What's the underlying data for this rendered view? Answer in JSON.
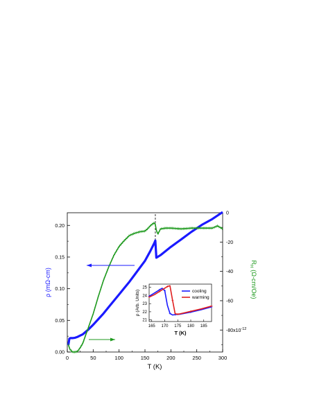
{
  "chart_data": [
    {
      "type": "line",
      "xlabel": "T (K)",
      "ylabel_left": "ρ (mΩ-cm)",
      "ylabel_right_prefix": "R",
      "ylabel_right_sub": "H",
      "ylabel_right_suffix": " (Ω-cm/Oe)",
      "xlim": [
        0,
        300
      ],
      "ylim_left": [
        0,
        0.22
      ],
      "ylim_right": [
        -95,
        0
      ],
      "x_ticks": [
        "0",
        "50",
        "100",
        "150",
        "200",
        "250",
        "300"
      ],
      "y_ticks_left": [
        "0.00",
        "0.05",
        "0.10",
        "0.15",
        "0.20"
      ],
      "y_ticks_right": [
        "0",
        "-20",
        "-40",
        "-60",
        "-80x10"
      ],
      "y_right_exponent": "-12",
      "dashed_line_x": 170,
      "series": [
        {
          "axis": "left",
          "color": "#1a1aff",
          "x": [
            2,
            4,
            6,
            10,
            15,
            20,
            25,
            30,
            40,
            50,
            60,
            70,
            80,
            90,
            100,
            110,
            120,
            130,
            140,
            150,
            160,
            168,
            170,
            172,
            180,
            200,
            220,
            240,
            260,
            280,
            300
          ],
          "y": [
            0.011,
            0.021,
            0.022,
            0.022,
            0.0225,
            0.024,
            0.026,
            0.028,
            0.035,
            0.043,
            0.052,
            0.061,
            0.071,
            0.081,
            0.091,
            0.101,
            0.111,
            0.122,
            0.133,
            0.144,
            0.159,
            0.172,
            0.176,
            0.149,
            0.153,
            0.166,
            0.178,
            0.19,
            0.201,
            0.21,
            0.221
          ]
        },
        {
          "axis": "right",
          "color": "#1f9a1f",
          "x": [
            2,
            5,
            10,
            15,
            20,
            25,
            30,
            35,
            40,
            50,
            60,
            70,
            80,
            90,
            100,
            110,
            120,
            130,
            140,
            150,
            155,
            160,
            165,
            168,
            170,
            172,
            175,
            180,
            190,
            200,
            220,
            240,
            260,
            280,
            290,
            295,
            300
          ],
          "y": [
            -90,
            -93,
            -95,
            -95,
            -94.5,
            -92,
            -89,
            -84,
            -79,
            -69,
            -57,
            -46,
            -37,
            -29,
            -23,
            -19,
            -15.5,
            -14,
            -13,
            -12.5,
            -11,
            -9,
            -7.5,
            -7,
            -8,
            -12,
            -14.5,
            -11,
            -10.5,
            -10.5,
            -11,
            -10.5,
            -10.5,
            -10.5,
            -9,
            -10,
            -11
          ]
        }
      ],
      "annotations": [
        {
          "type": "arrow",
          "direction": "left",
          "color": "#1a1aff",
          "points_to": "left axis"
        },
        {
          "type": "arrow",
          "direction": "right",
          "color": "#1f9a1f",
          "points_to": "right axis"
        }
      ]
    },
    {
      "type": "line",
      "inset": true,
      "xlabel": "T (K)",
      "ylabel": "ρ (Arb. Units)",
      "xlim": [
        164,
        188
      ],
      "ylim": [
        20.8,
        25.4
      ],
      "x_ticks": [
        "165",
        "170",
        "175",
        "180",
        "185"
      ],
      "y_ticks": [
        "21",
        "22",
        "23",
        "24",
        "25"
      ],
      "legend_position": "top-right",
      "series": [
        {
          "name": "cooling",
          "color": "#1a1aff",
          "x": [
            164,
            166,
            168,
            169,
            170,
            171,
            172,
            173,
            174,
            176,
            180,
            184,
            188
          ],
          "y": [
            23.9,
            24.3,
            24.7,
            24.9,
            24.6,
            22.8,
            21.8,
            21.6,
            21.65,
            21.7,
            21.95,
            22.25,
            22.6
          ]
        },
        {
          "name": "warming",
          "color": "#e01f1f",
          "x": [
            164,
            166,
            168,
            170,
            171,
            172,
            173,
            174,
            175,
            176,
            180,
            184,
            188
          ],
          "y": [
            23.8,
            24.1,
            24.5,
            24.9,
            25.1,
            25.2,
            23.4,
            21.75,
            21.7,
            21.75,
            22.05,
            22.35,
            22.7
          ]
        }
      ]
    }
  ]
}
